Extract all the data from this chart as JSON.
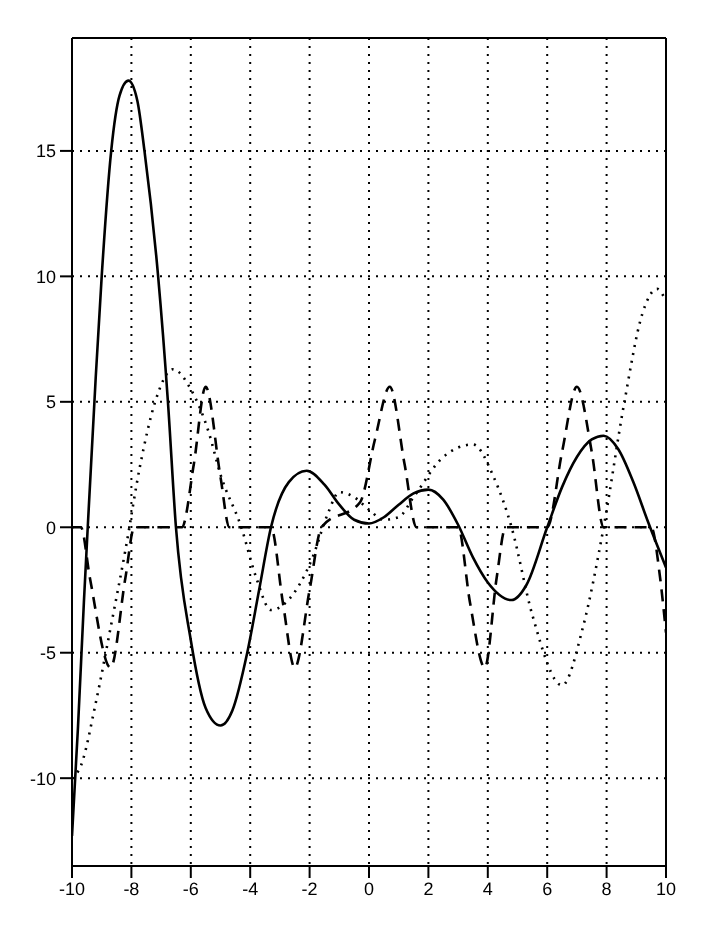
{
  "chart_data": {
    "type": "line",
    "xlim": [
      -10,
      10
    ],
    "xticks": [
      -10,
      -8,
      -6,
      -4,
      -2,
      0,
      2,
      4,
      6,
      8,
      10
    ],
    "ylim": [
      -13.5,
      19.5
    ],
    "yticks": [
      -10,
      -5,
      0,
      5,
      10,
      15
    ],
    "grid": true,
    "legend": false,
    "marker": "none",
    "series": [
      {
        "color": "#000000",
        "line_style": "solid",
        "x": [
          -10,
          -9.8,
          -9.6,
          -9.47,
          -9.2,
          -9.0,
          -8.68,
          -8.4,
          -8.1,
          -7.8,
          -7.56,
          -7.1,
          -6.77,
          -6.5,
          -6.0,
          -5.5,
          -5.0,
          -4.6,
          -4.1,
          -3.7,
          -3.3,
          -2.7,
          -2.1,
          -1.5,
          -1.0,
          -0.5,
          0,
          0.5,
          1.0,
          1.5,
          2.0,
          2.5,
          3.0,
          3.5,
          4.0,
          4.8,
          5.3,
          6.0,
          6.5,
          7.0,
          7.5,
          7.9,
          8.4,
          8.9,
          9.4,
          10
        ],
        "values": [
          -12.3,
          -8,
          -3,
          0,
          6,
          10,
          15,
          17.2,
          17.8,
          17,
          15,
          10,
          5,
          0,
          -4.5,
          -7.2,
          -7.9,
          -7.3,
          -5,
          -2.5,
          0,
          1.8,
          2.25,
          1.7,
          0.9,
          0.3,
          0.15,
          0.4,
          0.9,
          1.35,
          1.5,
          1.1,
          0.1,
          -1.2,
          -2.2,
          -2.9,
          -2.3,
          0,
          1.6,
          2.8,
          3.5,
          3.65,
          3.1,
          1.8,
          0.2,
          -1.6
        ]
      },
      {
        "color": "#000000",
        "line_style": "dashed",
        "x": [
          -10,
          -9.7,
          -9.4,
          -8.7,
          -8.2,
          -7.9,
          -6.3,
          -5.9,
          -5.5,
          -5.0,
          -4.7,
          -3.3,
          -2.9,
          -2.5,
          -2.0,
          -1.6,
          -0.3,
          0.2,
          0.7,
          1.2,
          1.6,
          3.0,
          3.4,
          3.9,
          4.3,
          4.6,
          6.0,
          6.5,
          7.0,
          7.5,
          7.9,
          9.5,
          9.8,
          10
        ],
        "values": [
          0,
          0,
          -2,
          -5.6,
          -2,
          0,
          0,
          2.5,
          5.6,
          2,
          0,
          0,
          -3,
          -5.6,
          -2.5,
          0,
          1,
          3.5,
          5.6,
          2.5,
          0,
          0,
          -3,
          -5.6,
          -2,
          0,
          0,
          3,
          5.6,
          3,
          0,
          0,
          -2,
          -4.2
        ]
      },
      {
        "color": "#000000",
        "line_style": "dotted",
        "x": [
          -10,
          -9.7,
          -9.2,
          -8.7,
          -8.2,
          -7.7,
          -7.2,
          -6.6,
          -6.0,
          -5.4,
          -5.0,
          -4.3,
          -3.8,
          -3.3,
          -2.8,
          -2.3,
          -1.9,
          -1.4,
          -1.0,
          -0.5,
          0,
          0.5,
          1.0,
          1.5,
          2.5,
          3.5,
          4.2,
          4.8,
          5.5,
          6.5,
          7.2,
          7.9,
          8.6,
          9.2,
          9.7,
          10
        ],
        "values": [
          -10,
          -9.5,
          -7,
          -4,
          -0.9,
          2.5,
          5,
          6.3,
          5.5,
          3.8,
          2.1,
          0,
          -2,
          -3.3,
          -3,
          -2.2,
          -1.2,
          0.5,
          1.4,
          1.2,
          0.7,
          0.3,
          0.4,
          1.2,
          2.8,
          3.3,
          2,
          0,
          -3.5,
          -6.3,
          -4,
          0,
          5,
          8.5,
          9.5,
          9
        ]
      }
    ]
  }
}
